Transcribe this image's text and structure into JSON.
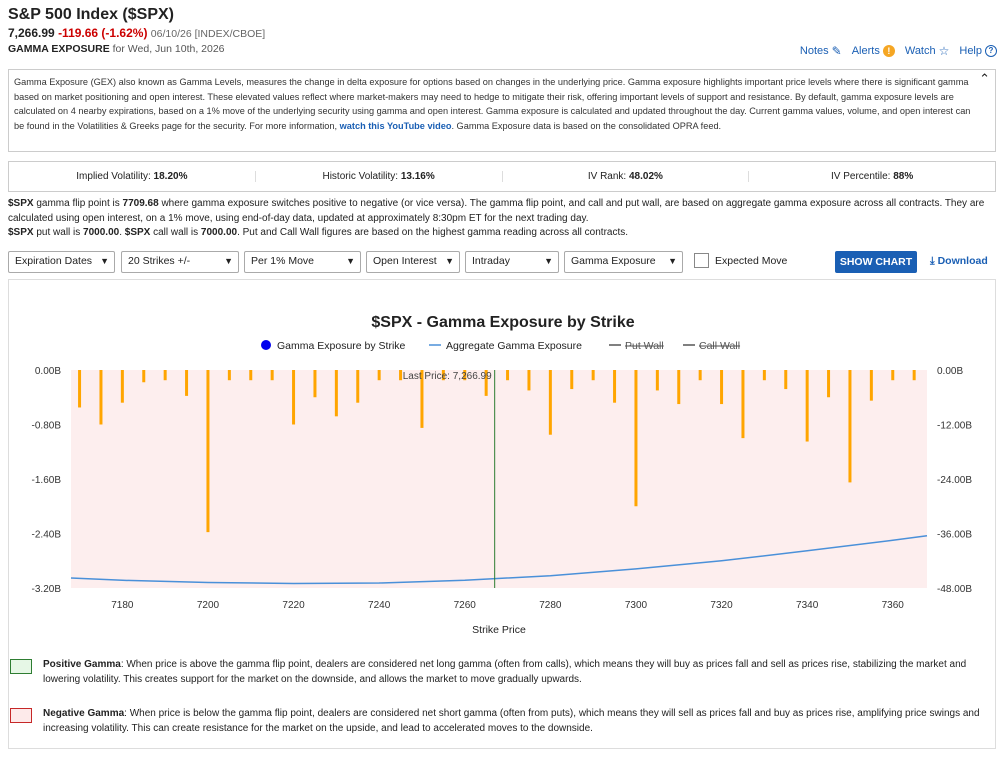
{
  "header": {
    "title": "S&P 500 Index ($SPX)",
    "price": "7,266.99",
    "change": "-119.66 (-1.62%)",
    "meta": "06/10/26 [INDEX/CBOE]",
    "subtitle_label": "GAMMA EXPOSURE",
    "subtitle_date": "for Wed, Jun 10th, 2026"
  },
  "toplinks": {
    "notes": "Notes",
    "alerts": "Alerts",
    "watch": "Watch",
    "help": "Help"
  },
  "description": {
    "text1": "Gamma Exposure (GEX) also known as Gamma Levels, measures the change in delta exposure for options based on changes in the underlying price. Gamma exposure highlights important price levels where there is significant gamma based on market positioning and open interest. These elevated values reflect where market-makers may need to hedge to mitigate their risk, offering important levels of support and resistance. By default, gamma exposure levels are calculated on 4 nearby expirations, based on a 1% move of the underlying security using gamma and open interest. Gamma exposure is calculated and updated throughout the day. Current gamma values, volume, and open interest can be found in the Volatilities & Greeks page for the security. For more information,",
    "link": "watch this YouTube video",
    "text2": ". Gamma Exposure data is based on the consolidated OPRA feed."
  },
  "volatility": {
    "iv_label": "Implied Volatility:",
    "iv_value": "18.20%",
    "hv_label": "Historic Volatility:",
    "hv_value": "13.16%",
    "ivr_label": "IV Rank:",
    "ivr_value": "48.02%",
    "ivp_label": "IV Percentile:",
    "ivp_value": "88%"
  },
  "flip": {
    "symbol": "$SPX",
    "text_a": " gamma flip point is ",
    "flip_value": "7709.68",
    "text_b": " where gamma exposure switches positive to negative (or vice versa). The gamma flip point, and call and put wall, are based on aggregate gamma exposure across all contracts. They are calculated using open interest, on a 1% move, using end-of-day data, updated at approximately 8:30pm ET for the next trading day.",
    "symbol2": "$SPX",
    "put_wall_text": " put wall is ",
    "put_wall": "7000.00",
    "symbol3": "$SPX",
    "call_wall_text": " call wall is ",
    "call_wall": "7000.00",
    "text_c": ". Put and Call Wall figures are based on the highest gamma reading across all contracts."
  },
  "controls": {
    "expiration": "Expiration Dates",
    "strikes": "20 Strikes +/-",
    "move": "Per 1% Move",
    "oi": "Open Interest",
    "intraday": "Intraday",
    "gamma": "Gamma Exposure",
    "expected": "Expected Move",
    "show_chart": "SHOW CHART",
    "download": "Download"
  },
  "chart_data": {
    "type": "bar",
    "title": "$SPX - Gamma Exposure by Strike",
    "xlabel": "Strike Price",
    "legend": [
      "Gamma Exposure by Strike",
      "Aggregate Gamma Exposure",
      "Put Wall",
      "Call Wall"
    ],
    "legend_placement": "top",
    "xlim": [
      7168,
      7368
    ],
    "xticks": [
      7180,
      7200,
      7220,
      7240,
      7260,
      7280,
      7300,
      7320,
      7340,
      7360
    ],
    "ylim_left": [
      -3.2,
      0
    ],
    "yticks_left": [
      "0.00B",
      "-0.80B",
      "-1.60B",
      "-2.40B",
      "-3.20B"
    ],
    "ylim_right": [
      -48,
      0
    ],
    "yticks_right": [
      "0.00B",
      "-12.00B",
      "-24.00B",
      "-36.00B",
      "-48.00B"
    ],
    "last_price_label": "Last Price: 7,266.99",
    "last_price": 7266.99,
    "bars": {
      "x": [
        7170,
        7175,
        7180,
        7185,
        7190,
        7195,
        7200,
        7205,
        7210,
        7215,
        7220,
        7225,
        7230,
        7235,
        7240,
        7245,
        7250,
        7255,
        7260,
        7265,
        7270,
        7275,
        7280,
        7285,
        7290,
        7295,
        7300,
        7305,
        7310,
        7315,
        7320,
        7325,
        7330,
        7335,
        7340,
        7345,
        7350,
        7355,
        7360,
        7365
      ],
      "values": [
        -0.55,
        -0.8,
        -0.48,
        -0.18,
        -0.15,
        -0.38,
        -2.38,
        -0.15,
        -0.15,
        -0.15,
        -0.8,
        -0.4,
        -0.68,
        -0.48,
        -0.15,
        -0.15,
        -0.85,
        -0.15,
        -0.15,
        -0.38,
        -0.15,
        -0.3,
        -0.95,
        -0.28,
        -0.15,
        -0.48,
        -2.0,
        -0.3,
        -0.5,
        -0.15,
        -0.5,
        -1.0,
        -0.15,
        -0.28,
        -1.05,
        -0.4,
        -1.65,
        -0.45,
        -0.15,
        -0.15
      ]
    },
    "aggregate": {
      "x": [
        7168,
        7180,
        7200,
        7220,
        7240,
        7260,
        7280,
        7300,
        7320,
        7340,
        7360,
        7368
      ],
      "values": [
        -45.8,
        -46.3,
        -46.8,
        -47.0,
        -46.9,
        -46.3,
        -45.3,
        -43.8,
        -42.0,
        -39.8,
        -37.5,
        -36.5
      ]
    }
  },
  "notes": {
    "positive_label": "Positive Gamma",
    "positive_text": ": When price is above the gamma flip point, dealers are considered net long gamma (often from calls), which means they will buy as prices fall and sell as prices rise, stabilizing the market and lowering volatility. This creates support for the market on the downside, and allows the market to move gradually upwards.",
    "negative_label": "Negative Gamma",
    "negative_text": ": When price is below the gamma flip point, dealers are considered net short gamma (often from puts), which means they will sell as prices fall and buy as prices rise, amplifying price swings and increasing volatility. This can create resistance for the market on the upside, and lead to accelerated moves to the downside."
  },
  "colors": {
    "bar": "#ffa500",
    "aggregate": "#4a90d9",
    "background_negative": "#fdeeee",
    "last_price": "#2e7d32",
    "positive_swatch": "#e6f7e6",
    "negative_swatch": "#fdeaea"
  }
}
